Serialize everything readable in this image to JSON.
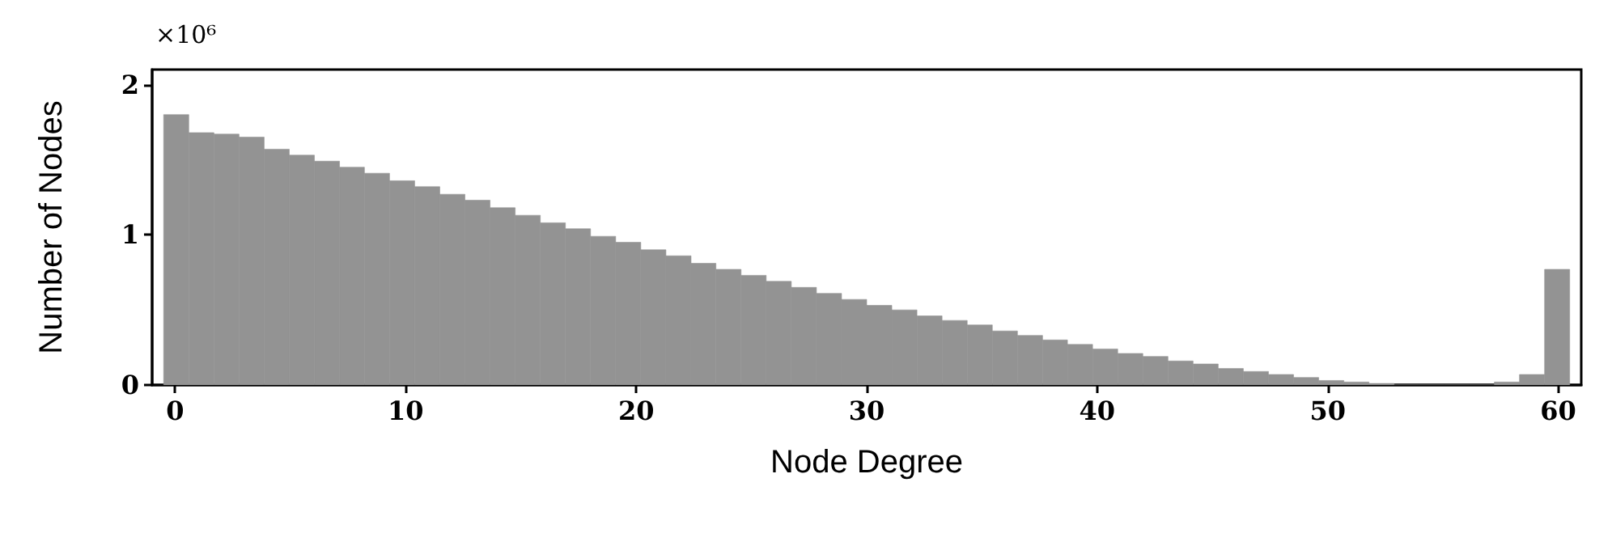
{
  "chart_data": {
    "type": "histogram",
    "xlabel": "Node Degree",
    "ylabel": "Number of Nodes",
    "annotations": [
      "×10⁶"
    ],
    "color": "#939393",
    "bins": [
      -0.5,
      0.59,
      1.68,
      2.77,
      3.86,
      4.95,
      6.04,
      7.13,
      8.21,
      9.3,
      10.39,
      11.48,
      12.57,
      13.66,
      14.75,
      15.84,
      16.93,
      18.02,
      19.11,
      20.2,
      21.29,
      22.38,
      23.46,
      24.55,
      25.64,
      26.73,
      27.82,
      28.91,
      30.0,
      31.09,
      32.18,
      33.27,
      34.36,
      35.45,
      36.54,
      37.63,
      38.71,
      39.8,
      40.89,
      41.98,
      43.07,
      44.16,
      45.25,
      46.34,
      47.43,
      48.52,
      49.61,
      50.7,
      51.79,
      52.88,
      53.96,
      55.05,
      56.14,
      57.23,
      58.32,
      59.41,
      60.5
    ],
    "values": [
      1.8,
      1.68,
      1.67,
      1.65,
      1.57,
      1.53,
      1.49,
      1.45,
      1.41,
      1.36,
      1.32,
      1.27,
      1.23,
      1.18,
      1.13,
      1.08,
      1.04,
      0.99,
      0.95,
      0.9,
      0.86,
      0.81,
      0.77,
      0.73,
      0.69,
      0.65,
      0.61,
      0.57,
      0.53,
      0.5,
      0.46,
      0.43,
      0.4,
      0.36,
      0.33,
      0.3,
      0.27,
      0.24,
      0.21,
      0.19,
      0.16,
      0.14,
      0.11,
      0.09,
      0.07,
      0.05,
      0.03,
      0.02,
      0.01,
      0,
      0,
      0,
      0,
      0.02,
      0.07,
      0.77
    ],
    "xlim": [
      -1,
      61
    ],
    "xticks": [
      0,
      10,
      20,
      30,
      40,
      50,
      60
    ],
    "ylim": [
      0,
      2.1
    ],
    "yticks": [
      0,
      1,
      2
    ],
    "grid": false
  }
}
